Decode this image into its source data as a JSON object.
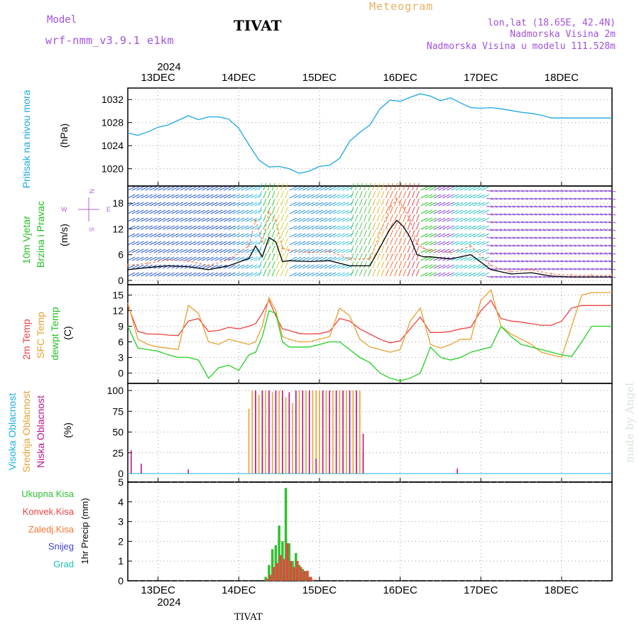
{
  "header": {
    "model_label": "Model",
    "model_name": "wrf-nmm_v3.9.1 e1km",
    "station": "TIVAT",
    "meteogram": "Meteogram",
    "lonlat": "lon,lat (18.65E, 42.4N)",
    "elevation": "Nadmorska Visina 2m",
    "model_elevation": "Nadmorska Visina u modelu 111.528m"
  },
  "footer": {
    "station": "TIVAT",
    "credit": "made by Angel"
  },
  "colors": {
    "pressure": "#1aa7e8",
    "temp2m": "#f04040",
    "sfc": "#e8a030",
    "dewpt": "#20d020",
    "high_cloud": "#1ab0e8",
    "mid_cloud": "#e8a030",
    "low_cloud": "#c0148c",
    "total_precip": "#30c030",
    "conv_precip": "#f04040",
    "frz_precip": "#f07830",
    "snow": "#4040e0",
    "hail": "#20c0b0",
    "gust": "#f07850",
    "wind_speed": "#000000"
  },
  "chart_data": {
    "type": "line",
    "year": "2024",
    "day_ticks": [
      "13DEC",
      "14DEC",
      "15DEC",
      "16DEC",
      "17DEC",
      "18DEC"
    ],
    "x_unit": "hours from 2024-12-12 15:00",
    "x_range": [
      0,
      144
    ],
    "panels": [
      {
        "id": "pressure",
        "ylabel": "Pritisak na nivou mora",
        "unit": "(hPa)",
        "yticks": [
          1020,
          1024,
          1028,
          1032
        ],
        "ylim": [
          1017,
          1034
        ],
        "series": [
          {
            "key": "pressure",
            "color": "#1aa7e8",
            "x": [
              0,
              3,
              6,
              9,
              12,
              15,
              18,
              21,
              24,
              27,
              30,
              33,
              36,
              39,
              42,
              45,
              48,
              51,
              54,
              57,
              60,
              63,
              66,
              69,
              72,
              75,
              78,
              81,
              84,
              87,
              90,
              93,
              96,
              99,
              102,
              105,
              108,
              111,
              114,
              117,
              120,
              123,
              126,
              129,
              132,
              135,
              138,
              141,
              144
            ],
            "y": [
              1026.2,
              1025.8,
              1026.4,
              1027.2,
              1027.6,
              1028.4,
              1029.2,
              1028.5,
              1029.0,
              1029.0,
              1028.6,
              1027.0,
              1024.2,
              1021.5,
              1020.3,
              1020.4,
              1020.0,
              1019.2,
              1019.6,
              1020.4,
              1020.6,
              1021.8,
              1024.8,
              1026.3,
              1027.6,
              1030.4,
              1031.9,
              1031.7,
              1032.4,
              1033.0,
              1032.6,
              1031.8,
              1032.3,
              1031.4,
              1030.6,
              1030.5,
              1030.6,
              1030.4,
              1030.1,
              1029.8,
              1029.6,
              1029.3,
              1028.8,
              1028.8,
              1028.8,
              1028.8,
              1028.8,
              1028.8,
              1028.8
            ]
          }
        ]
      },
      {
        "id": "wind",
        "ylabel": "10m Vjetar",
        "ylabel2": "Brzina i Pravac",
        "unit": "(m/s)",
        "compass": {
          "n": "N",
          "w": "W",
          "e": "E",
          "s": "S"
        },
        "yticks": [
          0,
          6,
          12,
          18
        ],
        "ylim": [
          -1,
          22
        ],
        "series": [
          {
            "key": "wind_speed",
            "color": "#000000",
            "x": [
              0,
              6,
              12,
              18,
              24,
              30,
              36,
              38,
              40,
              42,
              44,
              46,
              48,
              54,
              60,
              66,
              72,
              78,
              80,
              82,
              84,
              86,
              88,
              90,
              96,
              102,
              108,
              114,
              120,
              126,
              132,
              138,
              144
            ],
            "y": [
              2.5,
              3.0,
              3.4,
              3.2,
              2.5,
              3.4,
              5.1,
              8.0,
              5.5,
              10.0,
              9.0,
              4.4,
              4.6,
              4.4,
              4.6,
              3.4,
              3.4,
              12.0,
              14.0,
              12.5,
              10.0,
              6.0,
              5.5,
              5.5,
              5.0,
              6.0,
              2.5,
              1.5,
              1.8,
              1.0,
              0.8,
              0.8,
              0.8
            ]
          },
          {
            "key": "gust",
            "color": "#f07850",
            "x": [
              0,
              6,
              12,
              18,
              24,
              30,
              36,
              38,
              40,
              42,
              44,
              46,
              48,
              54,
              60,
              66,
              72,
              78,
              80,
              82,
              84,
              86,
              88,
              90,
              96,
              102,
              108,
              114,
              120,
              126,
              132,
              138,
              144
            ],
            "y": [
              3.5,
              4.0,
              4.8,
              4.5,
              3.5,
              4.8,
              8.0,
              14.0,
              9.0,
              16.0,
              14.0,
              7.5,
              7.0,
              6.5,
              6.8,
              5.0,
              5.0,
              17.0,
              19.0,
              17.0,
              14.0,
              8.5,
              7.5,
              7.0,
              6.5,
              8.0,
              3.5,
              2.0,
              2.5,
              1.5,
              1.2,
              1.2,
              1.2
            ]
          }
        ]
      },
      {
        "id": "temperature",
        "ylabel": "2m Temp",
        "ylabel2": "SFC Temp",
        "ylabel3": "dewpt Temp",
        "unit": "(C)",
        "yticks": [
          0,
          3,
          6,
          9,
          12,
          15
        ],
        "ylim": [
          -2,
          17
        ],
        "series": [
          {
            "key": "temp2m",
            "color": "#f04040",
            "x": [
              0,
              3,
              6,
              9,
              12,
              15,
              18,
              21,
              24,
              27,
              30,
              33,
              36,
              38,
              40,
              42,
              44,
              46,
              48,
              51,
              54,
              57,
              60,
              63,
              66,
              69,
              72,
              75,
              78,
              81,
              84,
              87,
              90,
              93,
              96,
              99,
              102,
              105,
              108,
              111,
              114,
              117,
              120,
              123,
              126,
              129,
              132,
              135,
              138,
              141,
              144
            ],
            "y": [
              13.0,
              8.0,
              7.5,
              7.5,
              7.3,
              7.2,
              10.0,
              10.5,
              8.0,
              8.2,
              8.8,
              8.5,
              9.0,
              9.5,
              11.5,
              14.0,
              11.0,
              8.5,
              8.2,
              7.6,
              7.5,
              7.6,
              8.0,
              10.5,
              10.0,
              8.5,
              7.5,
              6.5,
              5.8,
              6.2,
              8.5,
              10.8,
              7.8,
              7.8,
              8.0,
              8.5,
              8.8,
              12.0,
              14.0,
              10.5,
              10.0,
              9.8,
              9.5,
              9.2,
              9.2,
              10.0,
              12.5,
              13.0,
              13.0,
              13.0,
              13.0
            ]
          },
          {
            "key": "sfc",
            "color": "#e8a030",
            "x": [
              0,
              3,
              6,
              9,
              12,
              15,
              18,
              21,
              24,
              27,
              30,
              33,
              36,
              38,
              40,
              42,
              44,
              46,
              48,
              51,
              54,
              57,
              60,
              63,
              66,
              69,
              72,
              75,
              78,
              81,
              84,
              87,
              90,
              93,
              96,
              99,
              102,
              105,
              108,
              111,
              114,
              117,
              120,
              123,
              126,
              129,
              132,
              135,
              138,
              141,
              144
            ],
            "y": [
              13.5,
              6.5,
              5.5,
              5.0,
              4.8,
              4.5,
              13.0,
              11.5,
              6.0,
              5.5,
              6.5,
              6.0,
              5.5,
              6.0,
              9.0,
              14.5,
              12.0,
              7.0,
              6.5,
              6.0,
              6.0,
              6.5,
              7.0,
              12.5,
              11.0,
              6.5,
              5.0,
              4.5,
              4.0,
              4.5,
              10.0,
              12.5,
              5.5,
              4.8,
              5.5,
              6.5,
              6.5,
              14.0,
              16.0,
              9.0,
              7.5,
              6.5,
              5.5,
              4.0,
              3.5,
              3.0,
              9.0,
              15.0,
              15.5,
              15.5,
              15.5
            ]
          },
          {
            "key": "dewpt",
            "color": "#20d020",
            "x": [
              0,
              3,
              6,
              9,
              12,
              15,
              18,
              21,
              24,
              27,
              30,
              33,
              36,
              38,
              40,
              42,
              44,
              46,
              48,
              51,
              54,
              57,
              60,
              63,
              66,
              69,
              72,
              75,
              78,
              81,
              84,
              87,
              90,
              93,
              96,
              99,
              102,
              105,
              108,
              111,
              114,
              117,
              120,
              123,
              126,
              129,
              132,
              135,
              138,
              141,
              144
            ],
            "y": [
              9.0,
              4.8,
              4.5,
              4.2,
              3.5,
              3.0,
              3.0,
              2.5,
              -1.0,
              1.0,
              1.5,
              0.5,
              3.5,
              4.0,
              7.0,
              12.0,
              11.5,
              6.0,
              5.0,
              5.0,
              5.0,
              5.5,
              6.0,
              6.0,
              4.5,
              3.0,
              2.0,
              0.0,
              -1.0,
              -1.5,
              -1.0,
              0.0,
              5.0,
              3.0,
              2.5,
              3.0,
              4.0,
              4.5,
              5.0,
              9.0,
              7.0,
              5.5,
              5.0,
              4.5,
              4.0,
              3.5,
              3.2,
              6.0,
              9.0,
              9.0,
              9.0
            ]
          }
        ]
      },
      {
        "id": "clouds",
        "ylabel": "Visoka Oblacnost",
        "ylabel2": "Srednja Oblacnost",
        "ylabel3": "Niska Oblacnost",
        "unit": "(%)",
        "yticks": [
          0,
          25,
          50,
          75,
          100
        ],
        "ylim": [
          0,
          100
        ],
        "series": [
          {
            "key": "mid_cloud",
            "color": "#e8a030",
            "x": [
              36,
              37,
              38,
              39,
              40,
              41,
              42,
              43,
              44,
              45,
              46,
              47,
              48,
              49,
              50,
              51,
              52,
              53,
              54,
              55,
              56,
              57,
              58,
              59,
              60,
              61,
              62,
              63,
              64,
              65,
              66,
              67,
              68,
              69,
              70
            ],
            "y": [
              78,
              100,
              100,
              95,
              100,
              100,
              100,
              98,
              100,
              100,
              100,
              92,
              90,
              85,
              100,
              100,
              100,
              100,
              100,
              100,
              100,
              100,
              100,
              100,
              100,
              100,
              100,
              100,
              100,
              100,
              100,
              100,
              100,
              100,
              25
            ]
          },
          {
            "key": "low_cloud",
            "color": "#c0148c",
            "x": [
              1,
              4,
              18,
              38,
              40,
              42,
              44,
              46,
              48,
              50,
              52,
              54,
              56,
              58,
              60,
              62,
              64,
              66,
              68,
              70,
              98
            ],
            "y": [
              28,
              12,
              5,
              100,
              100,
              100,
              100,
              100,
              98,
              100,
              100,
              100,
              18,
              100,
              100,
              100,
              100,
              100,
              100,
              48,
              6
            ]
          }
        ]
      },
      {
        "id": "precip",
        "ylabel": "1hr Precip",
        "unit": "(mm)",
        "legend": [
          "Ukupna Kisa",
          "Konvek.Kisa",
          "Zaledj.Kisa",
          "Snijeg",
          "Grad"
        ],
        "yticks": [
          0,
          1,
          2,
          3,
          4,
          5
        ],
        "ylim": [
          0,
          5
        ],
        "series": [
          {
            "key": "total_precip",
            "color": "#30c030",
            "x": [
              41,
              42,
              43,
              44,
              45,
              46,
              47,
              48,
              49,
              50,
              51,
              52,
              53,
              54,
              55
            ],
            "y": [
              0.2,
              0.8,
              1.6,
              1.8,
              2.8,
              2.0,
              4.7,
              1.9,
              1.0,
              1.4,
              0.8,
              0.6,
              0.5,
              0.2,
              0.05
            ]
          },
          {
            "key": "conv_precip",
            "color": "#f04040",
            "x": [
              41,
              42,
              43,
              44,
              45,
              46,
              47,
              48,
              49,
              50,
              51,
              52,
              53,
              54,
              55
            ],
            "y": [
              0.1,
              0.3,
              0.7,
              0.9,
              1.3,
              1.1,
              1.9,
              1.0,
              0.7,
              1.0,
              0.7,
              0.5,
              0.5,
              0.2,
              0.05
            ]
          }
        ]
      }
    ]
  }
}
